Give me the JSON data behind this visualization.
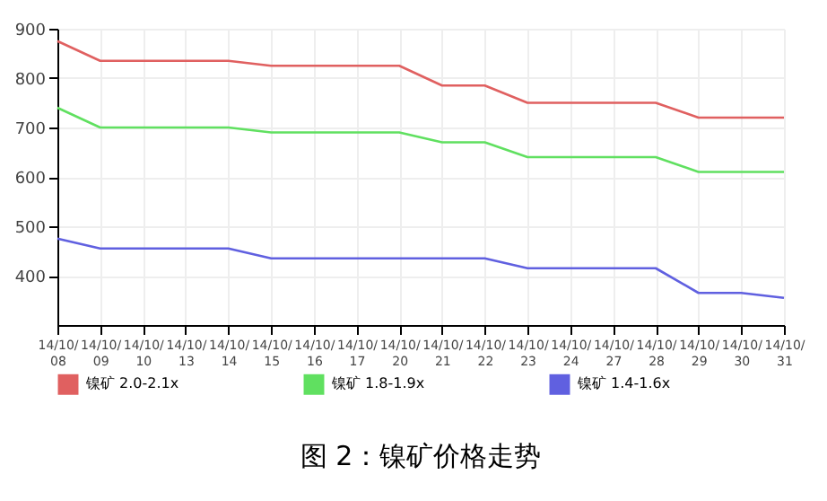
{
  "chart_data": {
    "type": "line",
    "title": "图 2：镍矿价格走势",
    "categories": [
      "14/10/08",
      "14/10/09",
      "14/10/10",
      "14/10/13",
      "14/10/14",
      "14/10/15",
      "14/10/16",
      "14/10/17",
      "14/10/20",
      "14/10/21",
      "14/10/22",
      "14/10/23",
      "14/10/24",
      "14/10/27",
      "14/10/28",
      "14/10/29",
      "14/10/30",
      "14/10/31"
    ],
    "series": [
      {
        "name": "镍矿 2.0-2.1x",
        "color": "#e06060",
        "values": [
          875,
          835,
          835,
          835,
          835,
          825,
          825,
          825,
          825,
          785,
          785,
          750,
          750,
          750,
          750,
          720,
          720,
          720
        ]
      },
      {
        "name": "镍矿 1.8-1.9x",
        "color": "#60e060",
        "values": [
          740,
          700,
          700,
          700,
          700,
          690,
          690,
          690,
          690,
          670,
          670,
          640,
          640,
          640,
          640,
          610,
          610,
          610
        ]
      },
      {
        "name": "镍矿 1.4-1.6x",
        "color": "#6060e0",
        "values": [
          475,
          455,
          455,
          455,
          455,
          435,
          435,
          435,
          435,
          435,
          435,
          415,
          415,
          415,
          415,
          365,
          365,
          355
        ]
      }
    ],
    "ylim": [
      300,
      900
    ],
    "yticks": [
      400,
      500,
      600,
      700,
      800,
      900
    ],
    "grid": true,
    "legend": "bottom left",
    "marker": "none",
    "line_style": "solid"
  }
}
